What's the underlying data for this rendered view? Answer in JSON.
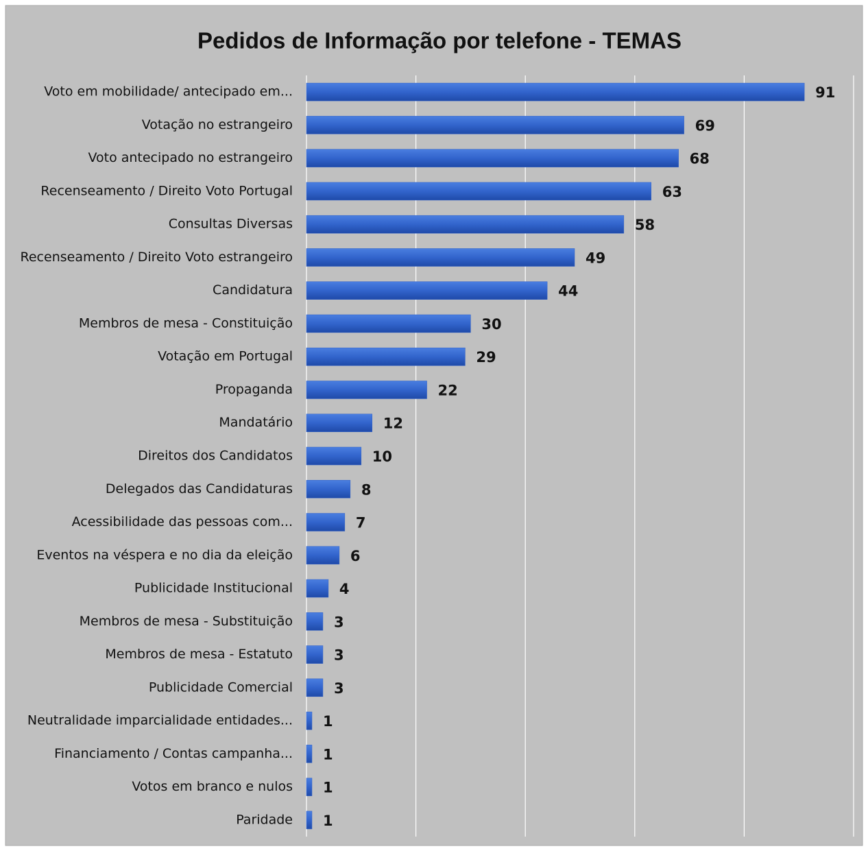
{
  "chart_data": {
    "type": "bar",
    "orientation": "horizontal",
    "title": "Pedidos de Informação por telefone - TEMAS",
    "categories": [
      "Voto em mobilidade/ antecipado em...",
      "Votação no estrangeiro",
      "Voto antecipado no estrangeiro",
      "Recenseamento / Direito Voto Portugal",
      "Consultas Diversas",
      "Recenseamento / Direito Voto estrangeiro",
      "Candidatura",
      "Membros de mesa - Constituição",
      "Votação em Portugal",
      "Propaganda",
      "Mandatário",
      "Direitos dos Candidatos",
      "Delegados das Candidaturas",
      "Acessibilidade das pessoas com...",
      "Eventos na véspera e no dia da eleição",
      "Publicidade Institucional",
      "Membros de mesa - Substituição",
      "Membros de mesa - Estatuto",
      "Publicidade Comercial",
      "Neutralidade imparcialidade entidades...",
      "Financiamento / Contas campanha...",
      "Votos em branco e nulos",
      "Paridade"
    ],
    "values": [
      91,
      69,
      68,
      63,
      58,
      49,
      44,
      30,
      29,
      22,
      12,
      10,
      8,
      7,
      6,
      4,
      3,
      3,
      3,
      1,
      1,
      1,
      1
    ],
    "color": "#3060c8",
    "xlim": [
      0,
      100
    ],
    "xticks": [
      0,
      20,
      40,
      60,
      80,
      100
    ],
    "grid": true
  }
}
